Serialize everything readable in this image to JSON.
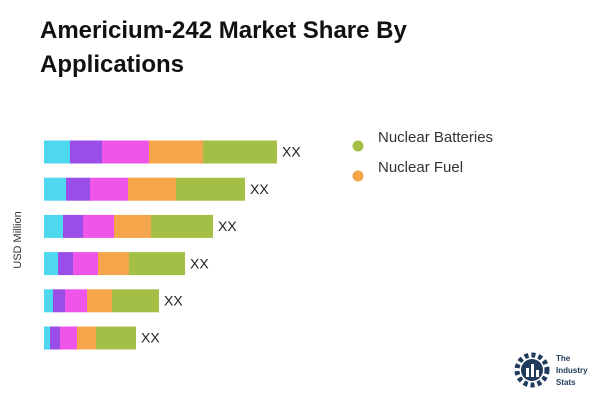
{
  "chart_data": {
    "type": "stacked-bar-horizontal",
    "title": "Americium-242 Market Share By Applications",
    "y_axis_label": "USD Million",
    "categories": [
      null,
      null,
      null,
      null,
      null,
      null
    ],
    "series": [
      {
        "color": "#4dd8f0",
        "values": [
          26,
          22,
          19,
          14,
          9,
          6
        ]
      },
      {
        "color": "#9b4de8",
        "values": [
          32,
          24,
          20,
          15,
          12,
          10
        ]
      },
      {
        "color": "#ee55e8",
        "values": [
          47,
          38,
          31,
          25,
          22,
          17
        ]
      },
      {
        "name": "Nuclear Fuel",
        "color": "#f5a54a",
        "values": [
          54,
          48,
          37,
          31,
          25,
          19
        ]
      },
      {
        "name": "Nuclear Batteries",
        "color": "#a3bf45",
        "values": [
          74,
          69,
          62,
          56,
          47,
          40
        ]
      }
    ],
    "total_labels": [
      "XX",
      "XX",
      "XX",
      "XX",
      "XX",
      "XX"
    ],
    "logo_text": [
      "The",
      "Industry",
      "Stats"
    ]
  }
}
